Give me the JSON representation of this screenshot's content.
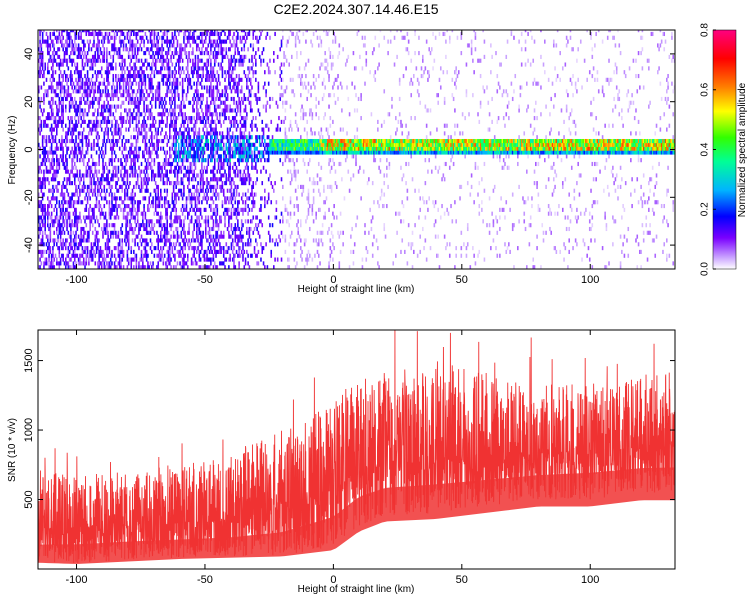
{
  "figure": {
    "title": "C2E2.2024.307.14.46.E15"
  },
  "chart_data": [
    {
      "type": "heatmap",
      "xlabel": "Height of straight line (km)",
      "ylabel": "Frequency (Hz)",
      "xlim": [
        -115,
        133
      ],
      "ylim": [
        -50,
        50
      ],
      "xticks": [
        -100,
        -50,
        0,
        50,
        100
      ],
      "xtick_labels": [
        "-100",
        "-50",
        "0",
        "50",
        "100"
      ],
      "yticks": [
        -40,
        -20,
        0,
        20,
        40
      ],
      "ytick_labels": [
        "-40",
        "-20",
        "0",
        "20",
        "40"
      ],
      "colorbar": {
        "label": "Normalized spectral amplitude",
        "range": [
          0.0,
          0.8
        ],
        "ticks": [
          0.0,
          0.2,
          0.4,
          0.6,
          0.8
        ],
        "tick_labels": [
          "0.0",
          "0.2",
          "0.4",
          "0.6",
          "0.8"
        ],
        "colormap": [
          "#ffffff",
          "#7a00ff",
          "#0000ff",
          "#00b7ff",
          "#00ff80",
          "#40ff00",
          "#ffff00",
          "#ff8000",
          "#ff0000",
          "#ff0080"
        ]
      },
      "features": [
        {
          "kind": "noise",
          "x_range": [
            -115,
            -20
          ],
          "amplitude": 0.12
        },
        {
          "kind": "noise",
          "x_range": [
            -20,
            133
          ],
          "amplitude": 0.04
        },
        {
          "kind": "band",
          "frequency_hz": 1,
          "x_range": [
            -25,
            133
          ],
          "amplitude": 0.6
        },
        {
          "kind": "burst",
          "x_range": [
            -62,
            -25
          ],
          "frequency_hz": 0,
          "amplitude": 0.25
        }
      ]
    },
    {
      "type": "area",
      "xlabel": "Height of straight line (km)",
      "ylabel": "SNR (10 * v/v)",
      "xlim": [
        -115,
        133
      ],
      "ylim": [
        0,
        1720
      ],
      "xticks": [
        -100,
        -50,
        0,
        50,
        100
      ],
      "xtick_labels": [
        "-100",
        "-50",
        "0",
        "50",
        "100"
      ],
      "yticks": [
        500,
        1000,
        1500
      ],
      "ytick_labels": [
        "500",
        "1000",
        "1500"
      ],
      "color": "#f03232",
      "envelope": {
        "x": [
          -115,
          -100,
          -80,
          -60,
          -40,
          -20,
          0,
          10,
          20,
          40,
          60,
          80,
          100,
          120,
          133
        ],
        "low": [
          50,
          40,
          60,
          80,
          90,
          100,
          150,
          300,
          380,
          400,
          450,
          500,
          500,
          550,
          550
        ],
        "mid": [
          280,
          290,
          310,
          320,
          340,
          400,
          560,
          700,
          750,
          780,
          800,
          820,
          850,
          870,
          880
        ],
        "high": [
          720,
          680,
          700,
          750,
          820,
          1000,
          1200,
          1350,
          1400,
          1500,
          1400,
          1350,
          1320,
          1380,
          1420
        ]
      }
    }
  ]
}
